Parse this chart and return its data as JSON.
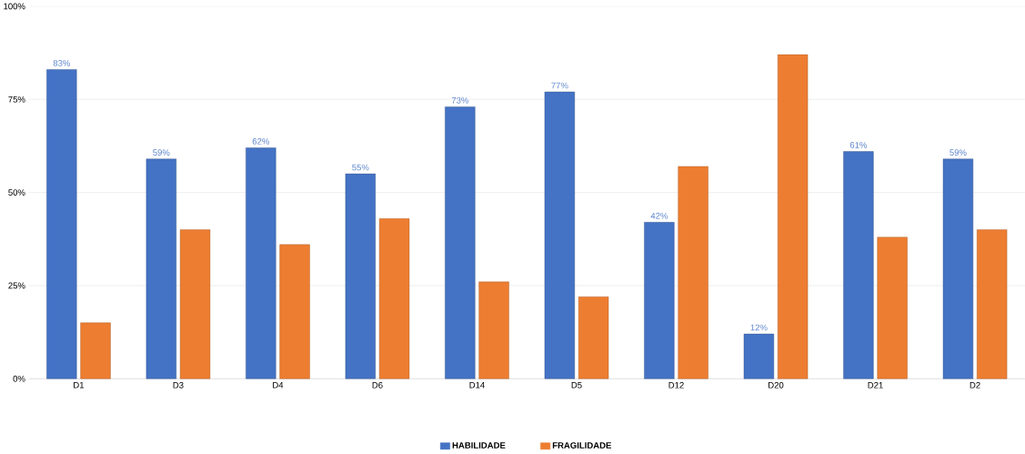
{
  "chart_data": {
    "type": "bar",
    "categories": [
      "D1",
      "D3",
      "D4",
      "D6",
      "D14",
      "D5",
      "D12",
      "D20",
      "D21",
      "D2"
    ],
    "series": [
      {
        "name": "HABILIDADE",
        "color": "#4472c4",
        "values": [
          83,
          59,
          62,
          55,
          73,
          77,
          42,
          12,
          61,
          59
        ],
        "value_labels": [
          "83%",
          "59%",
          "62%",
          "55%",
          "73%",
          "77%",
          "42%",
          "12%",
          "61%",
          "59%"
        ]
      },
      {
        "name": "FRAGILIDADE",
        "color": "#ed7d31",
        "values": [
          15,
          40,
          36,
          43,
          26,
          22,
          57,
          87,
          38,
          40
        ]
      }
    ],
    "ylim": [
      0,
      100
    ],
    "yticks": [
      {
        "value": 0,
        "label": "0%"
      },
      {
        "value": 25,
        "label": "25%"
      },
      {
        "value": 50,
        "label": "50%"
      },
      {
        "value": 75,
        "label": "75%"
      },
      {
        "value": 100,
        "label": "100%"
      }
    ],
    "grid": "y",
    "legend": "bottom"
  }
}
